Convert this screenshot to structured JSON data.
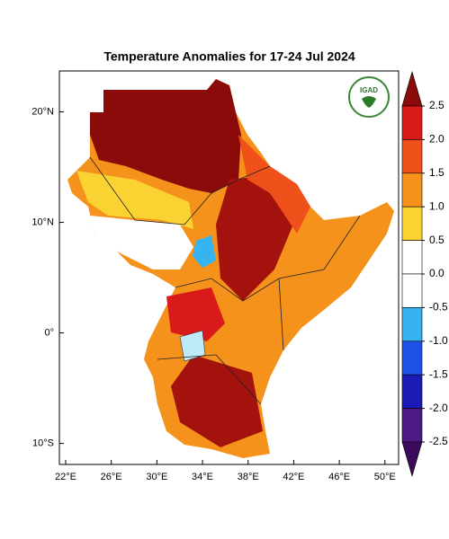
{
  "title": "Temperature Anomalies for 17-24 Jul 2024",
  "logo": "IGAD",
  "map": {
    "xlim": [
      21.45,
      51.2
    ],
    "ylim": [
      -11.9,
      23.7
    ],
    "xticks": [
      {
        "value": 22,
        "label": "22°E"
      },
      {
        "value": 26,
        "label": "26°E"
      },
      {
        "value": 30,
        "label": "30°E"
      },
      {
        "value": 34,
        "label": "34°E"
      },
      {
        "value": 38,
        "label": "38°E"
      },
      {
        "value": 42,
        "label": "42°E"
      },
      {
        "value": 46,
        "label": "46°E"
      },
      {
        "value": 50,
        "label": "50°E"
      }
    ],
    "yticks": [
      {
        "value": 20,
        "label": "20°N"
      },
      {
        "value": 10,
        "label": "10°N"
      },
      {
        "value": 0,
        "label": "0°"
      },
      {
        "value": -10,
        "label": "10°S"
      }
    ]
  },
  "colorbar": {
    "lim": [
      -2.5,
      2.5
    ],
    "ticks": [
      2.5,
      {
        "value": 2,
        "label": "2.0"
      },
      1.5,
      {
        "value": 1,
        "label": "1.0"
      },
      0.5,
      {
        "value": 0,
        "label": "0.0"
      },
      -0.5,
      {
        "value": -1,
        "label": "-1.0"
      },
      -1.5,
      {
        "value": -2,
        "label": "-2.0"
      },
      -2.5
    ],
    "colors": [
      "#8b0a0a",
      "#d91a1a",
      "#f0501a",
      "#f5921c",
      "#fad232",
      "#ffffff",
      "#ffffff",
      "#37b4f0",
      "#1e50e6",
      "#1a1ab4",
      "#4b1a82",
      "#3c0a5a"
    ]
  }
}
